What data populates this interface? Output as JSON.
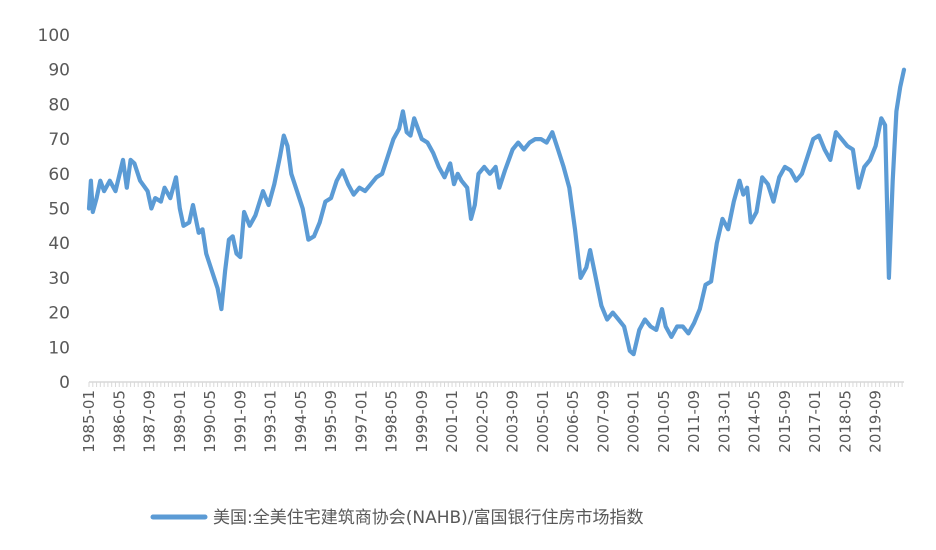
{
  "chart_data": {
    "type": "line",
    "title": "",
    "xlabel": "",
    "ylabel": "",
    "ylim": [
      0,
      100
    ],
    "yticks": [
      0,
      10,
      20,
      30,
      40,
      50,
      60,
      70,
      80,
      90,
      100
    ],
    "xlim": [
      "1985-01",
      "2020-12"
    ],
    "xticks": [
      "1985-01",
      "1986-05",
      "1987-09",
      "1989-01",
      "1990-05",
      "1991-09",
      "1993-01",
      "1994-05",
      "1995-09",
      "1997-01",
      "1998-05",
      "1999-09",
      "2001-01",
      "2002-05",
      "2003-09",
      "2005-01",
      "2006-05",
      "2007-09",
      "2009-01",
      "2010-05",
      "2011-09",
      "2013-01",
      "2014-05",
      "2015-09",
      "2017-01",
      "2018-05",
      "2019-09"
    ],
    "grid": false,
    "legend_position": "bottom",
    "color": "#5B9BD5",
    "series": [
      {
        "name": "美国:全美住宅建筑商协会(NAHB)/富国银行住房市场指数",
        "points": [
          [
            "1985-01",
            50
          ],
          [
            "1985-02",
            58
          ],
          [
            "1985-03",
            49
          ],
          [
            "1985-05",
            53
          ],
          [
            "1985-07",
            58
          ],
          [
            "1985-09",
            55
          ],
          [
            "1985-12",
            58
          ],
          [
            "1986-03",
            55
          ],
          [
            "1986-07",
            64
          ],
          [
            "1986-09",
            56
          ],
          [
            "1986-11",
            64
          ],
          [
            "1987-01",
            63
          ],
          [
            "1987-04",
            58
          ],
          [
            "1987-08",
            55
          ],
          [
            "1987-10",
            50
          ],
          [
            "1987-12",
            53
          ],
          [
            "1988-03",
            52
          ],
          [
            "1988-05",
            56
          ],
          [
            "1988-08",
            53
          ],
          [
            "1988-11",
            59
          ],
          [
            "1989-01",
            50
          ],
          [
            "1989-03",
            45
          ],
          [
            "1989-06",
            46
          ],
          [
            "1989-08",
            51
          ],
          [
            "1989-11",
            43
          ],
          [
            "1990-01",
            44
          ],
          [
            "1990-03",
            37
          ],
          [
            "1990-06",
            32
          ],
          [
            "1990-09",
            27
          ],
          [
            "1990-11",
            21
          ],
          [
            "1991-01",
            32
          ],
          [
            "1991-03",
            41
          ],
          [
            "1991-05",
            42
          ],
          [
            "1991-07",
            37
          ],
          [
            "1991-09",
            36
          ],
          [
            "1991-11",
            49
          ],
          [
            "1992-02",
            45
          ],
          [
            "1992-05",
            48
          ],
          [
            "1992-09",
            55
          ],
          [
            "1992-12",
            51
          ],
          [
            "1993-03",
            57
          ],
          [
            "1993-06",
            65
          ],
          [
            "1993-08",
            71
          ],
          [
            "1993-10",
            68
          ],
          [
            "1993-12",
            60
          ],
          [
            "1994-03",
            55
          ],
          [
            "1994-06",
            50
          ],
          [
            "1994-09",
            41
          ],
          [
            "1994-12",
            42
          ],
          [
            "1995-03",
            46
          ],
          [
            "1995-06",
            52
          ],
          [
            "1995-09",
            53
          ],
          [
            "1995-12",
            58
          ],
          [
            "1996-03",
            61
          ],
          [
            "1996-06",
            57
          ],
          [
            "1996-09",
            54
          ],
          [
            "1996-12",
            56
          ],
          [
            "1997-03",
            55
          ],
          [
            "1997-06",
            57
          ],
          [
            "1997-09",
            59
          ],
          [
            "1997-12",
            60
          ],
          [
            "1998-03",
            65
          ],
          [
            "1998-06",
            70
          ],
          [
            "1998-09",
            73
          ],
          [
            "1998-11",
            78
          ],
          [
            "1999-01",
            72
          ],
          [
            "1999-03",
            71
          ],
          [
            "1999-05",
            76
          ],
          [
            "1999-07",
            73
          ],
          [
            "1999-09",
            70
          ],
          [
            "1999-12",
            69
          ],
          [
            "2000-03",
            66
          ],
          [
            "2000-06",
            62
          ],
          [
            "2000-09",
            59
          ],
          [
            "2000-12",
            63
          ],
          [
            "2001-02",
            57
          ],
          [
            "2001-04",
            60
          ],
          [
            "2001-06",
            58
          ],
          [
            "2001-09",
            56
          ],
          [
            "2001-11",
            47
          ],
          [
            "2002-01",
            51
          ],
          [
            "2002-03",
            60
          ],
          [
            "2002-06",
            62
          ],
          [
            "2002-09",
            60
          ],
          [
            "2002-12",
            62
          ],
          [
            "2003-02",
            56
          ],
          [
            "2003-05",
            61
          ],
          [
            "2003-09",
            67
          ],
          [
            "2003-12",
            69
          ],
          [
            "2004-03",
            67
          ],
          [
            "2004-06",
            69
          ],
          [
            "2004-09",
            70
          ],
          [
            "2004-12",
            70
          ],
          [
            "2005-03",
            69
          ],
          [
            "2005-06",
            72
          ],
          [
            "2005-09",
            67
          ],
          [
            "2005-12",
            62
          ],
          [
            "2006-03",
            56
          ],
          [
            "2006-06",
            44
          ],
          [
            "2006-09",
            30
          ],
          [
            "2006-12",
            33
          ],
          [
            "2007-02",
            38
          ],
          [
            "2007-05",
            30
          ],
          [
            "2007-08",
            22
          ],
          [
            "2007-11",
            18
          ],
          [
            "2008-02",
            20
          ],
          [
            "2008-05",
            18
          ],
          [
            "2008-08",
            16
          ],
          [
            "2008-11",
            9
          ],
          [
            "2009-01",
            8
          ],
          [
            "2009-04",
            15
          ],
          [
            "2009-07",
            18
          ],
          [
            "2009-10",
            16
          ],
          [
            "2010-01",
            15
          ],
          [
            "2010-04",
            21
          ],
          [
            "2010-06",
            16
          ],
          [
            "2010-09",
            13
          ],
          [
            "2010-12",
            16
          ],
          [
            "2011-03",
            16
          ],
          [
            "2011-06",
            14
          ],
          [
            "2011-09",
            17
          ],
          [
            "2011-12",
            21
          ],
          [
            "2012-03",
            28
          ],
          [
            "2012-06",
            29
          ],
          [
            "2012-09",
            40
          ],
          [
            "2012-12",
            47
          ],
          [
            "2013-03",
            44
          ],
          [
            "2013-06",
            52
          ],
          [
            "2013-09",
            58
          ],
          [
            "2013-11",
            54
          ],
          [
            "2014-01",
            56
          ],
          [
            "2014-03",
            46
          ],
          [
            "2014-06",
            49
          ],
          [
            "2014-09",
            59
          ],
          [
            "2014-12",
            57
          ],
          [
            "2015-03",
            52
          ],
          [
            "2015-06",
            59
          ],
          [
            "2015-09",
            62
          ],
          [
            "2015-12",
            61
          ],
          [
            "2016-03",
            58
          ],
          [
            "2016-06",
            60
          ],
          [
            "2016-09",
            65
          ],
          [
            "2016-12",
            70
          ],
          [
            "2017-03",
            71
          ],
          [
            "2017-06",
            67
          ],
          [
            "2017-09",
            64
          ],
          [
            "2017-12",
            72
          ],
          [
            "2018-03",
            70
          ],
          [
            "2018-06",
            68
          ],
          [
            "2018-09",
            67
          ],
          [
            "2018-12",
            56
          ],
          [
            "2019-03",
            62
          ],
          [
            "2019-06",
            64
          ],
          [
            "2019-09",
            68
          ],
          [
            "2019-12",
            76
          ],
          [
            "2020-02",
            74
          ],
          [
            "2020-04",
            30
          ],
          [
            "2020-06",
            58
          ],
          [
            "2020-08",
            78
          ],
          [
            "2020-10",
            85
          ],
          [
            "2020-12",
            90
          ]
        ]
      }
    ]
  }
}
